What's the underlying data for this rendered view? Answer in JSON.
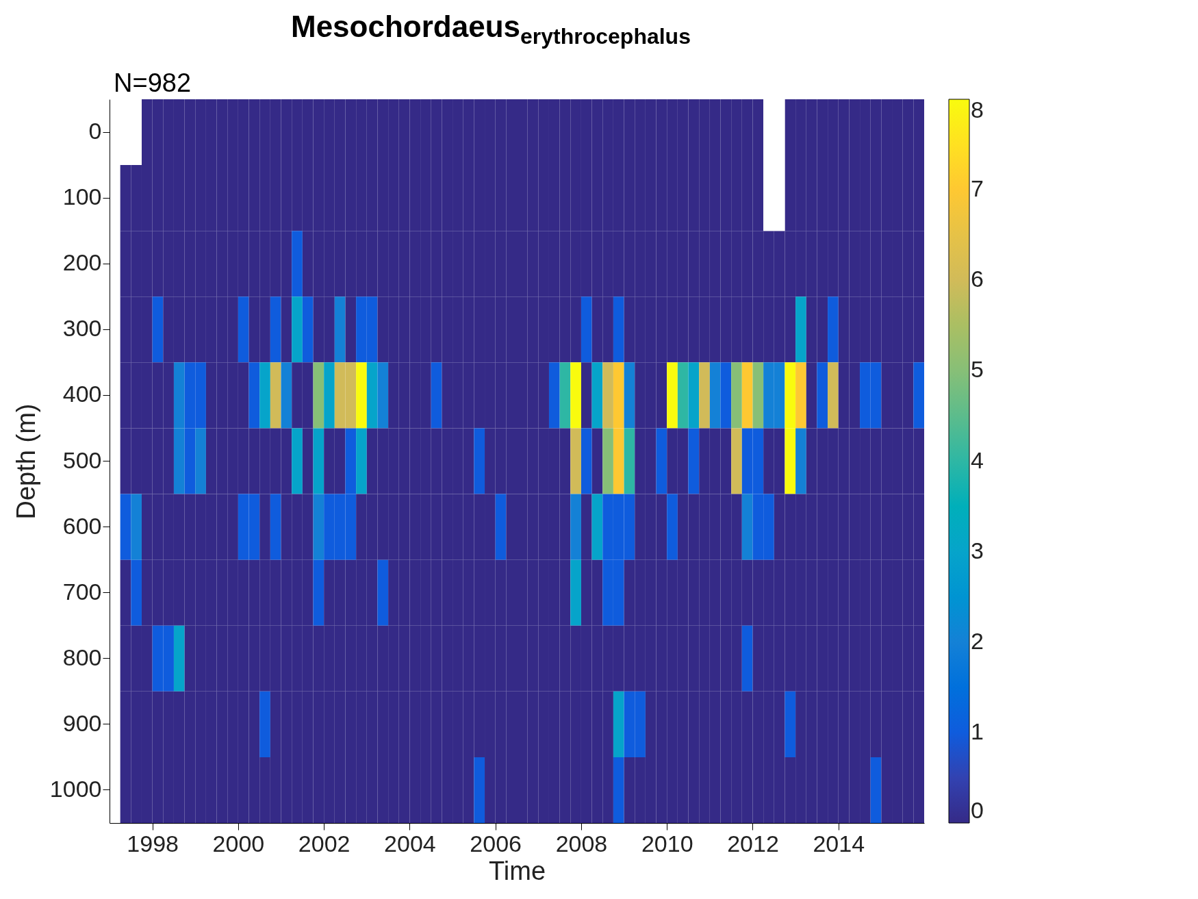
{
  "chart_data": {
    "type": "heatmap",
    "title": "Mesochordaeus$_{erythrocephalus}$",
    "xlabel": "Time",
    "ylabel": "Depth (m)",
    "annotations": [
      "N=982"
    ],
    "x": [
      1997.375,
      1997.625,
      1997.875,
      1998.125,
      1998.375,
      1998.625,
      1998.875,
      1999.125,
      1999.375,
      1999.625,
      1999.875,
      2000.125,
      2000.375,
      2000.625,
      2000.875,
      2001.125,
      2001.375,
      2001.625,
      2001.875,
      2002.125,
      2002.375,
      2002.625,
      2002.875,
      2003.125,
      2003.375,
      2003.625,
      2003.875,
      2004.125,
      2004.375,
      2004.625,
      2004.875,
      2005.125,
      2005.375,
      2005.625,
      2005.875,
      2006.125,
      2006.375,
      2006.625,
      2006.875,
      2007.125,
      2007.375,
      2007.625,
      2007.875,
      2008.125,
      2008.375,
      2008.625,
      2008.875,
      2009.125,
      2009.375,
      2009.625,
      2009.875,
      2010.125,
      2010.375,
      2010.625,
      2010.875,
      2011.125,
      2011.375,
      2011.625,
      2011.875,
      2012.125,
      2012.375,
      2012.625,
      2012.875,
      2013.125,
      2013.375,
      2013.625,
      2013.875,
      2014.125,
      2014.375,
      2014.625,
      2014.875,
      2015.125,
      2015.375,
      2015.625,
      2015.875
    ],
    "y_categories": [
      "0",
      "100",
      "200",
      "300",
      "400",
      "500",
      "600",
      "700",
      "800",
      "900",
      "1000"
    ],
    "cells": [
      [
        null,
        null,
        0,
        0,
        0,
        0,
        0,
        0,
        0,
        0,
        0,
        0,
        0,
        0,
        0,
        0,
        0,
        0,
        0,
        0,
        0,
        0,
        0,
        0,
        0,
        0,
        0,
        0,
        0,
        0,
        0,
        0,
        0,
        0,
        0,
        0,
        0,
        0,
        0,
        0,
        0,
        0,
        0,
        0,
        0,
        0,
        0,
        0,
        0,
        0,
        0,
        0,
        0,
        0,
        0,
        0,
        0,
        0,
        0,
        0,
        null,
        null,
        0,
        0,
        0,
        0,
        0,
        0,
        0,
        0,
        0,
        0,
        0,
        0,
        0
      ],
      [
        0,
        0,
        0,
        0,
        0,
        0,
        0,
        0,
        0,
        0,
        0,
        0,
        0,
        0,
        0,
        0,
        0,
        0,
        0,
        0,
        0,
        0,
        0,
        0,
        0,
        0,
        0,
        0,
        0,
        0,
        0,
        0,
        0,
        0,
        0,
        0,
        0,
        0,
        0,
        0,
        0,
        0,
        0,
        0,
        0,
        0,
        0,
        0,
        0,
        0,
        0,
        0,
        0,
        0,
        0,
        0,
        0,
        0,
        0,
        0,
        null,
        null,
        0,
        0,
        0,
        0,
        0,
        0,
        0,
        0,
        0,
        0,
        0,
        0,
        0
      ],
      [
        0,
        0,
        0,
        0,
        0,
        0,
        0,
        0,
        0,
        0,
        0,
        0,
        0,
        0,
        0,
        0,
        1,
        0,
        0,
        0,
        0,
        0,
        0,
        0,
        0,
        0,
        0,
        0,
        0,
        0,
        0,
        0,
        0,
        0,
        0,
        0,
        0,
        0,
        0,
        0,
        0,
        0,
        0,
        0,
        0,
        0,
        0,
        0,
        0,
        0,
        0,
        0,
        0,
        0,
        0,
        0,
        0,
        0,
        0,
        0,
        0,
        0,
        0,
        0,
        0,
        0,
        0,
        0,
        0,
        0,
        0,
        0,
        0,
        0,
        0
      ],
      [
        0,
        0,
        0,
        1,
        0,
        0,
        0,
        0,
        0,
        0,
        0,
        1,
        0,
        0,
        1,
        0,
        3,
        1,
        0,
        0,
        2,
        0,
        1,
        1,
        0,
        0,
        0,
        0,
        0,
        0,
        0,
        0,
        0,
        0,
        0,
        0,
        0,
        0,
        0,
        0,
        0,
        0,
        0,
        1,
        0,
        0,
        1,
        0,
        0,
        0,
        0,
        0,
        0,
        0,
        0,
        0,
        0,
        0,
        0,
        0,
        0,
        0,
        0,
        3,
        0,
        0,
        1,
        0,
        0,
        0,
        0,
        0,
        0,
        0,
        0
      ],
      [
        0,
        0,
        0,
        0,
        0,
        2,
        1,
        1,
        0,
        0,
        0,
        0,
        1,
        3,
        6,
        2,
        0,
        0,
        5,
        3,
        6,
        6,
        8,
        3,
        2,
        0,
        0,
        0,
        0,
        1,
        0,
        0,
        0,
        0,
        0,
        0,
        0,
        0,
        0,
        0,
        1,
        4,
        8,
        0,
        3,
        6,
        7,
        2,
        0,
        0,
        0,
        8,
        4,
        3,
        6,
        2,
        1,
        5,
        7,
        5,
        2,
        2,
        8,
        7,
        0,
        1,
        6,
        0,
        0,
        1,
        1,
        0,
        0,
        0,
        1
      ],
      [
        0,
        0,
        0,
        0,
        0,
        2,
        1,
        2,
        0,
        0,
        0,
        0,
        0,
        0,
        0,
        0,
        3,
        0,
        3,
        0,
        0,
        1,
        3,
        0,
        0,
        0,
        0,
        0,
        0,
        0,
        0,
        0,
        0,
        1,
        0,
        0,
        0,
        0,
        0,
        0,
        0,
        0,
        6,
        1,
        0,
        5,
        7,
        4,
        0,
        0,
        1,
        0,
        0,
        1,
        0,
        0,
        0,
        6,
        1,
        1,
        0,
        0,
        8,
        2,
        0,
        0,
        0,
        0,
        0,
        0,
        0,
        0,
        0,
        0,
        0
      ],
      [
        1,
        2,
        0,
        0,
        0,
        0,
        0,
        0,
        0,
        0,
        0,
        1,
        1,
        0,
        1,
        0,
        0,
        0,
        2,
        1,
        1,
        1,
        0,
        0,
        0,
        0,
        0,
        0,
        0,
        0,
        0,
        0,
        0,
        0,
        0,
        1,
        0,
        0,
        0,
        0,
        0,
        0,
        2,
        0,
        3,
        1,
        1,
        1,
        0,
        0,
        0,
        1,
        0,
        0,
        0,
        0,
        0,
        0,
        2,
        1,
        1,
        0,
        0,
        0,
        0,
        0,
        0,
        0,
        0,
        0,
        0,
        0,
        0,
        0,
        0
      ],
      [
        0,
        1,
        0,
        0,
        0,
        0,
        0,
        0,
        0,
        0,
        0,
        0,
        0,
        0,
        0,
        0,
        0,
        0,
        1,
        0,
        0,
        0,
        0,
        0,
        1,
        0,
        0,
        0,
        0,
        0,
        0,
        0,
        0,
        0,
        0,
        0,
        0,
        0,
        0,
        0,
        0,
        0,
        3,
        0,
        0,
        1,
        1,
        0,
        0,
        0,
        0,
        0,
        0,
        0,
        0,
        0,
        0,
        0,
        0,
        0,
        0,
        0,
        0,
        0,
        0,
        0,
        0,
        0,
        0,
        0,
        0,
        0,
        0,
        0,
        0
      ],
      [
        0,
        0,
        0,
        1,
        1,
        3,
        0,
        0,
        0,
        0,
        0,
        0,
        0,
        0,
        0,
        0,
        0,
        0,
        0,
        0,
        0,
        0,
        0,
        0,
        0,
        0,
        0,
        0,
        0,
        0,
        0,
        0,
        0,
        0,
        0,
        0,
        0,
        0,
        0,
        0,
        0,
        0,
        0,
        0,
        0,
        0,
        0,
        0,
        0,
        0,
        0,
        0,
        0,
        0,
        0,
        0,
        0,
        0,
        1,
        0,
        0,
        0,
        0,
        0,
        0,
        0,
        0,
        0,
        0,
        0,
        0,
        0,
        0,
        0,
        0
      ],
      [
        0,
        0,
        0,
        0,
        0,
        0,
        0,
        0,
        0,
        0,
        0,
        0,
        0,
        1,
        0,
        0,
        0,
        0,
        0,
        0,
        0,
        0,
        0,
        0,
        0,
        0,
        0,
        0,
        0,
        0,
        0,
        0,
        0,
        0,
        0,
        0,
        0,
        0,
        0,
        0,
        0,
        0,
        0,
        0,
        0,
        0,
        3,
        1,
        1,
        0,
        0,
        0,
        0,
        0,
        0,
        0,
        0,
        0,
        0,
        0,
        0,
        0,
        1,
        0,
        0,
        0,
        0,
        0,
        0,
        0,
        0,
        0,
        0,
        0,
        0
      ],
      [
        0,
        0,
        0,
        0,
        0,
        0,
        0,
        0,
        0,
        0,
        0,
        0,
        0,
        0,
        0,
        0,
        0,
        0,
        0,
        0,
        0,
        0,
        0,
        0,
        0,
        0,
        0,
        0,
        0,
        0,
        0,
        0,
        0,
        1,
        0,
        0,
        0,
        0,
        0,
        0,
        0,
        0,
        0,
        0,
        0,
        0,
        1,
        0,
        0,
        0,
        0,
        0,
        0,
        0,
        0,
        0,
        0,
        0,
        0,
        0,
        0,
        0,
        0,
        0,
        0,
        0,
        0,
        0,
        0,
        0,
        1,
        0,
        0,
        0,
        0
      ]
    ],
    "xlim": [
      1997,
      2016
    ],
    "xticks": [
      1998,
      2000,
      2002,
      2004,
      2006,
      2008,
      2010,
      2012,
      2014
    ],
    "clim": [
      0,
      8
    ],
    "cticks": [
      0,
      1,
      2,
      3,
      4,
      5,
      6,
      7,
      8
    ],
    "grid": false
  }
}
